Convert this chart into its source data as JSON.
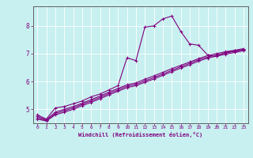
{
  "title": "",
  "xlabel": "Windchill (Refroidissement éolien,°C)",
  "bg_color": "#c8f0f0",
  "line_color": "#800080",
  "grid_color": "#ffffff",
  "border_color": "#606060",
  "xmin": -0.5,
  "xmax": 23.5,
  "ymin": 4.5,
  "ymax": 8.7,
  "yticks": [
    5,
    6,
    7,
    8
  ],
  "xticks": [
    0,
    1,
    2,
    3,
    4,
    5,
    6,
    7,
    8,
    9,
    10,
    11,
    12,
    13,
    14,
    15,
    16,
    17,
    18,
    19,
    20,
    21,
    22,
    23
  ],
  "series1_x": [
    0,
    1,
    2,
    3,
    4,
    5,
    6,
    7,
    8,
    9,
    10,
    11,
    12,
    13,
    14,
    15,
    16,
    17,
    18,
    19,
    20,
    21,
    22,
    23
  ],
  "series1_y": [
    4.8,
    4.65,
    5.05,
    5.1,
    5.2,
    5.3,
    5.45,
    5.55,
    5.7,
    5.85,
    6.85,
    6.75,
    7.95,
    8.0,
    8.25,
    8.35,
    7.8,
    7.35,
    7.3,
    6.95,
    6.9,
    7.05,
    7.1,
    7.15
  ],
  "series2_x": [
    0,
    1,
    2,
    3,
    4,
    5,
    6,
    7,
    8,
    9,
    10,
    11,
    12,
    13,
    14,
    15,
    16,
    17,
    18,
    19,
    20,
    21,
    22,
    23
  ],
  "series2_y": [
    4.75,
    4.62,
    4.9,
    5.0,
    5.1,
    5.22,
    5.35,
    5.48,
    5.62,
    5.75,
    5.88,
    5.95,
    6.08,
    6.2,
    6.33,
    6.46,
    6.58,
    6.7,
    6.82,
    6.93,
    7.0,
    7.07,
    7.12,
    7.18
  ],
  "series3_x": [
    0,
    1,
    2,
    3,
    4,
    5,
    6,
    7,
    8,
    9,
    10,
    11,
    12,
    13,
    14,
    15,
    16,
    17,
    18,
    19,
    20,
    21,
    22,
    23
  ],
  "series3_y": [
    4.7,
    4.6,
    4.85,
    4.95,
    5.05,
    5.18,
    5.3,
    5.43,
    5.57,
    5.7,
    5.83,
    5.9,
    6.02,
    6.14,
    6.27,
    6.4,
    6.53,
    6.65,
    6.78,
    6.88,
    6.95,
    7.02,
    7.08,
    7.14
  ],
  "series4_x": [
    0,
    1,
    2,
    3,
    4,
    5,
    6,
    7,
    8,
    9,
    10,
    11,
    12,
    13,
    14,
    15,
    16,
    17,
    18,
    19,
    20,
    21,
    22,
    23
  ],
  "series4_y": [
    4.65,
    4.58,
    4.8,
    4.9,
    5.0,
    5.13,
    5.25,
    5.38,
    5.52,
    5.65,
    5.78,
    5.85,
    5.97,
    6.09,
    6.22,
    6.35,
    6.48,
    6.6,
    6.73,
    6.84,
    6.91,
    6.98,
    7.04,
    7.1
  ]
}
